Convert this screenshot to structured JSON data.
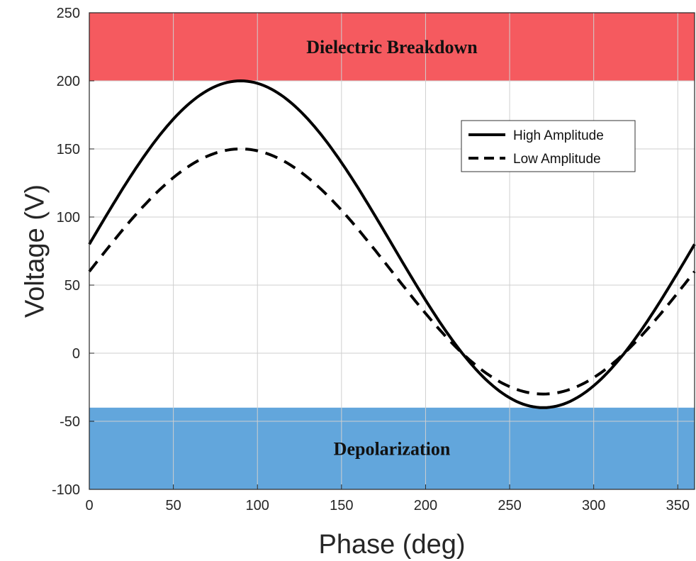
{
  "chart_data": {
    "type": "line",
    "xlabel": "Phase (deg)",
    "ylabel": "Voltage (V)",
    "xlim": [
      0,
      360
    ],
    "ylim": [
      -100,
      250
    ],
    "xticks": [
      0,
      50,
      100,
      150,
      200,
      250,
      300,
      350
    ],
    "yticks": [
      -100,
      -50,
      0,
      50,
      100,
      150,
      200,
      250
    ],
    "grid": true,
    "legend": "upper-right",
    "regions": [
      {
        "label": "Dielectric Breakdown",
        "y_from": 200,
        "y_to": 250,
        "color": "#f55a5f"
      },
      {
        "label": "Depolarization",
        "y_from": -100,
        "y_to": -40,
        "color": "#62a6dc"
      }
    ],
    "series": [
      {
        "name": "High Amplitude",
        "style": "solid",
        "color": "#000000",
        "offset": 80,
        "amplitude": 120,
        "x": [
          0,
          30,
          60,
          90,
          120,
          150,
          180,
          210,
          240,
          270,
          300,
          330,
          360
        ],
        "y": [
          80,
          140,
          183.9,
          200,
          183.9,
          140,
          80,
          20,
          -23.9,
          -40,
          -23.9,
          20,
          80
        ]
      },
      {
        "name": "Low Amplitude",
        "style": "dashed",
        "color": "#000000",
        "offset": 60,
        "amplitude": 90,
        "x": [
          0,
          30,
          60,
          90,
          120,
          150,
          180,
          210,
          240,
          270,
          300,
          330,
          360
        ],
        "y": [
          60,
          105,
          137.9,
          150,
          137.9,
          105,
          60,
          15,
          -17.9,
          -30,
          -17.9,
          15,
          60
        ]
      }
    ]
  }
}
